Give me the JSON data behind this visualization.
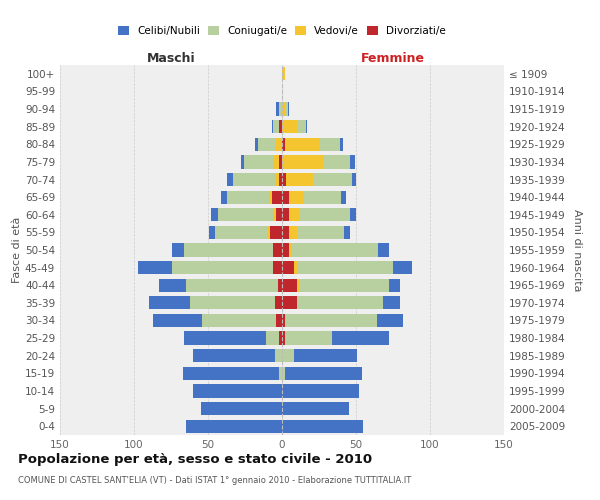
{
  "age_groups": [
    "0-4",
    "5-9",
    "10-14",
    "15-19",
    "20-24",
    "25-29",
    "30-34",
    "35-39",
    "40-44",
    "45-49",
    "50-54",
    "55-59",
    "60-64",
    "65-69",
    "70-74",
    "75-79",
    "80-84",
    "85-89",
    "90-94",
    "95-99",
    "100+"
  ],
  "birth_years": [
    "2005-2009",
    "2000-2004",
    "1995-1999",
    "1990-1994",
    "1985-1989",
    "1980-1984",
    "1975-1979",
    "1970-1974",
    "1965-1969",
    "1960-1964",
    "1955-1959",
    "1950-1954",
    "1945-1949",
    "1940-1944",
    "1935-1939",
    "1930-1934",
    "1925-1929",
    "1920-1924",
    "1915-1919",
    "1910-1914",
    "≤ 1909"
  ],
  "male_celibi": [
    65,
    55,
    60,
    65,
    55,
    55,
    33,
    28,
    18,
    23,
    8,
    4,
    5,
    4,
    4,
    2,
    2,
    1,
    2,
    0,
    0
  ],
  "male_coniugati": [
    0,
    0,
    0,
    2,
    5,
    9,
    50,
    57,
    62,
    68,
    60,
    35,
    37,
    28,
    28,
    20,
    12,
    4,
    2,
    0,
    0
  ],
  "male_vedovi": [
    0,
    0,
    0,
    0,
    0,
    0,
    0,
    0,
    0,
    0,
    0,
    2,
    2,
    2,
    3,
    4,
    4,
    0,
    0,
    0,
    0
  ],
  "male_divorziati": [
    0,
    0,
    0,
    0,
    0,
    2,
    4,
    5,
    3,
    6,
    6,
    8,
    4,
    7,
    2,
    2,
    0,
    2,
    0,
    0,
    0
  ],
  "female_nubili": [
    55,
    45,
    52,
    52,
    43,
    38,
    18,
    12,
    8,
    13,
    7,
    4,
    4,
    3,
    3,
    3,
    2,
    1,
    1,
    0,
    0
  ],
  "female_coniugate": [
    0,
    0,
    0,
    2,
    8,
    32,
    62,
    58,
    60,
    65,
    58,
    32,
    34,
    26,
    26,
    18,
    13,
    6,
    2,
    0,
    0
  ],
  "female_vedove": [
    0,
    0,
    0,
    0,
    0,
    0,
    0,
    0,
    2,
    2,
    2,
    5,
    7,
    9,
    18,
    28,
    24,
    10,
    2,
    0,
    2
  ],
  "female_divorziate": [
    0,
    0,
    0,
    0,
    0,
    2,
    2,
    10,
    10,
    8,
    5,
    5,
    5,
    5,
    3,
    0,
    2,
    0,
    0,
    0,
    0
  ],
  "color_celibi": "#4472c4",
  "color_coniugati": "#b8cfa0",
  "color_vedovi": "#f5c530",
  "color_divorziati": "#c0272d",
  "title": "Popolazione per età, sesso e stato civile - 2010",
  "subtitle": "COMUNE DI CASTEL SANT'ELIA (VT) - Dati ISTAT 1° gennaio 2010 - Elaborazione TUTTITALIA.IT",
  "xlim": 150,
  "ylabel_left": "Fasce di età",
  "ylabel_right": "Anni di nascita",
  "label_male": "Maschi",
  "label_female": "Femmine",
  "legend_labels": [
    "Celibi/Nubili",
    "Coniugati/e",
    "Vedovi/e",
    "Divorziati/e"
  ],
  "bg_color": "#efefef",
  "xticks": [
    -150,
    -100,
    -50,
    0,
    50,
    100,
    150
  ]
}
